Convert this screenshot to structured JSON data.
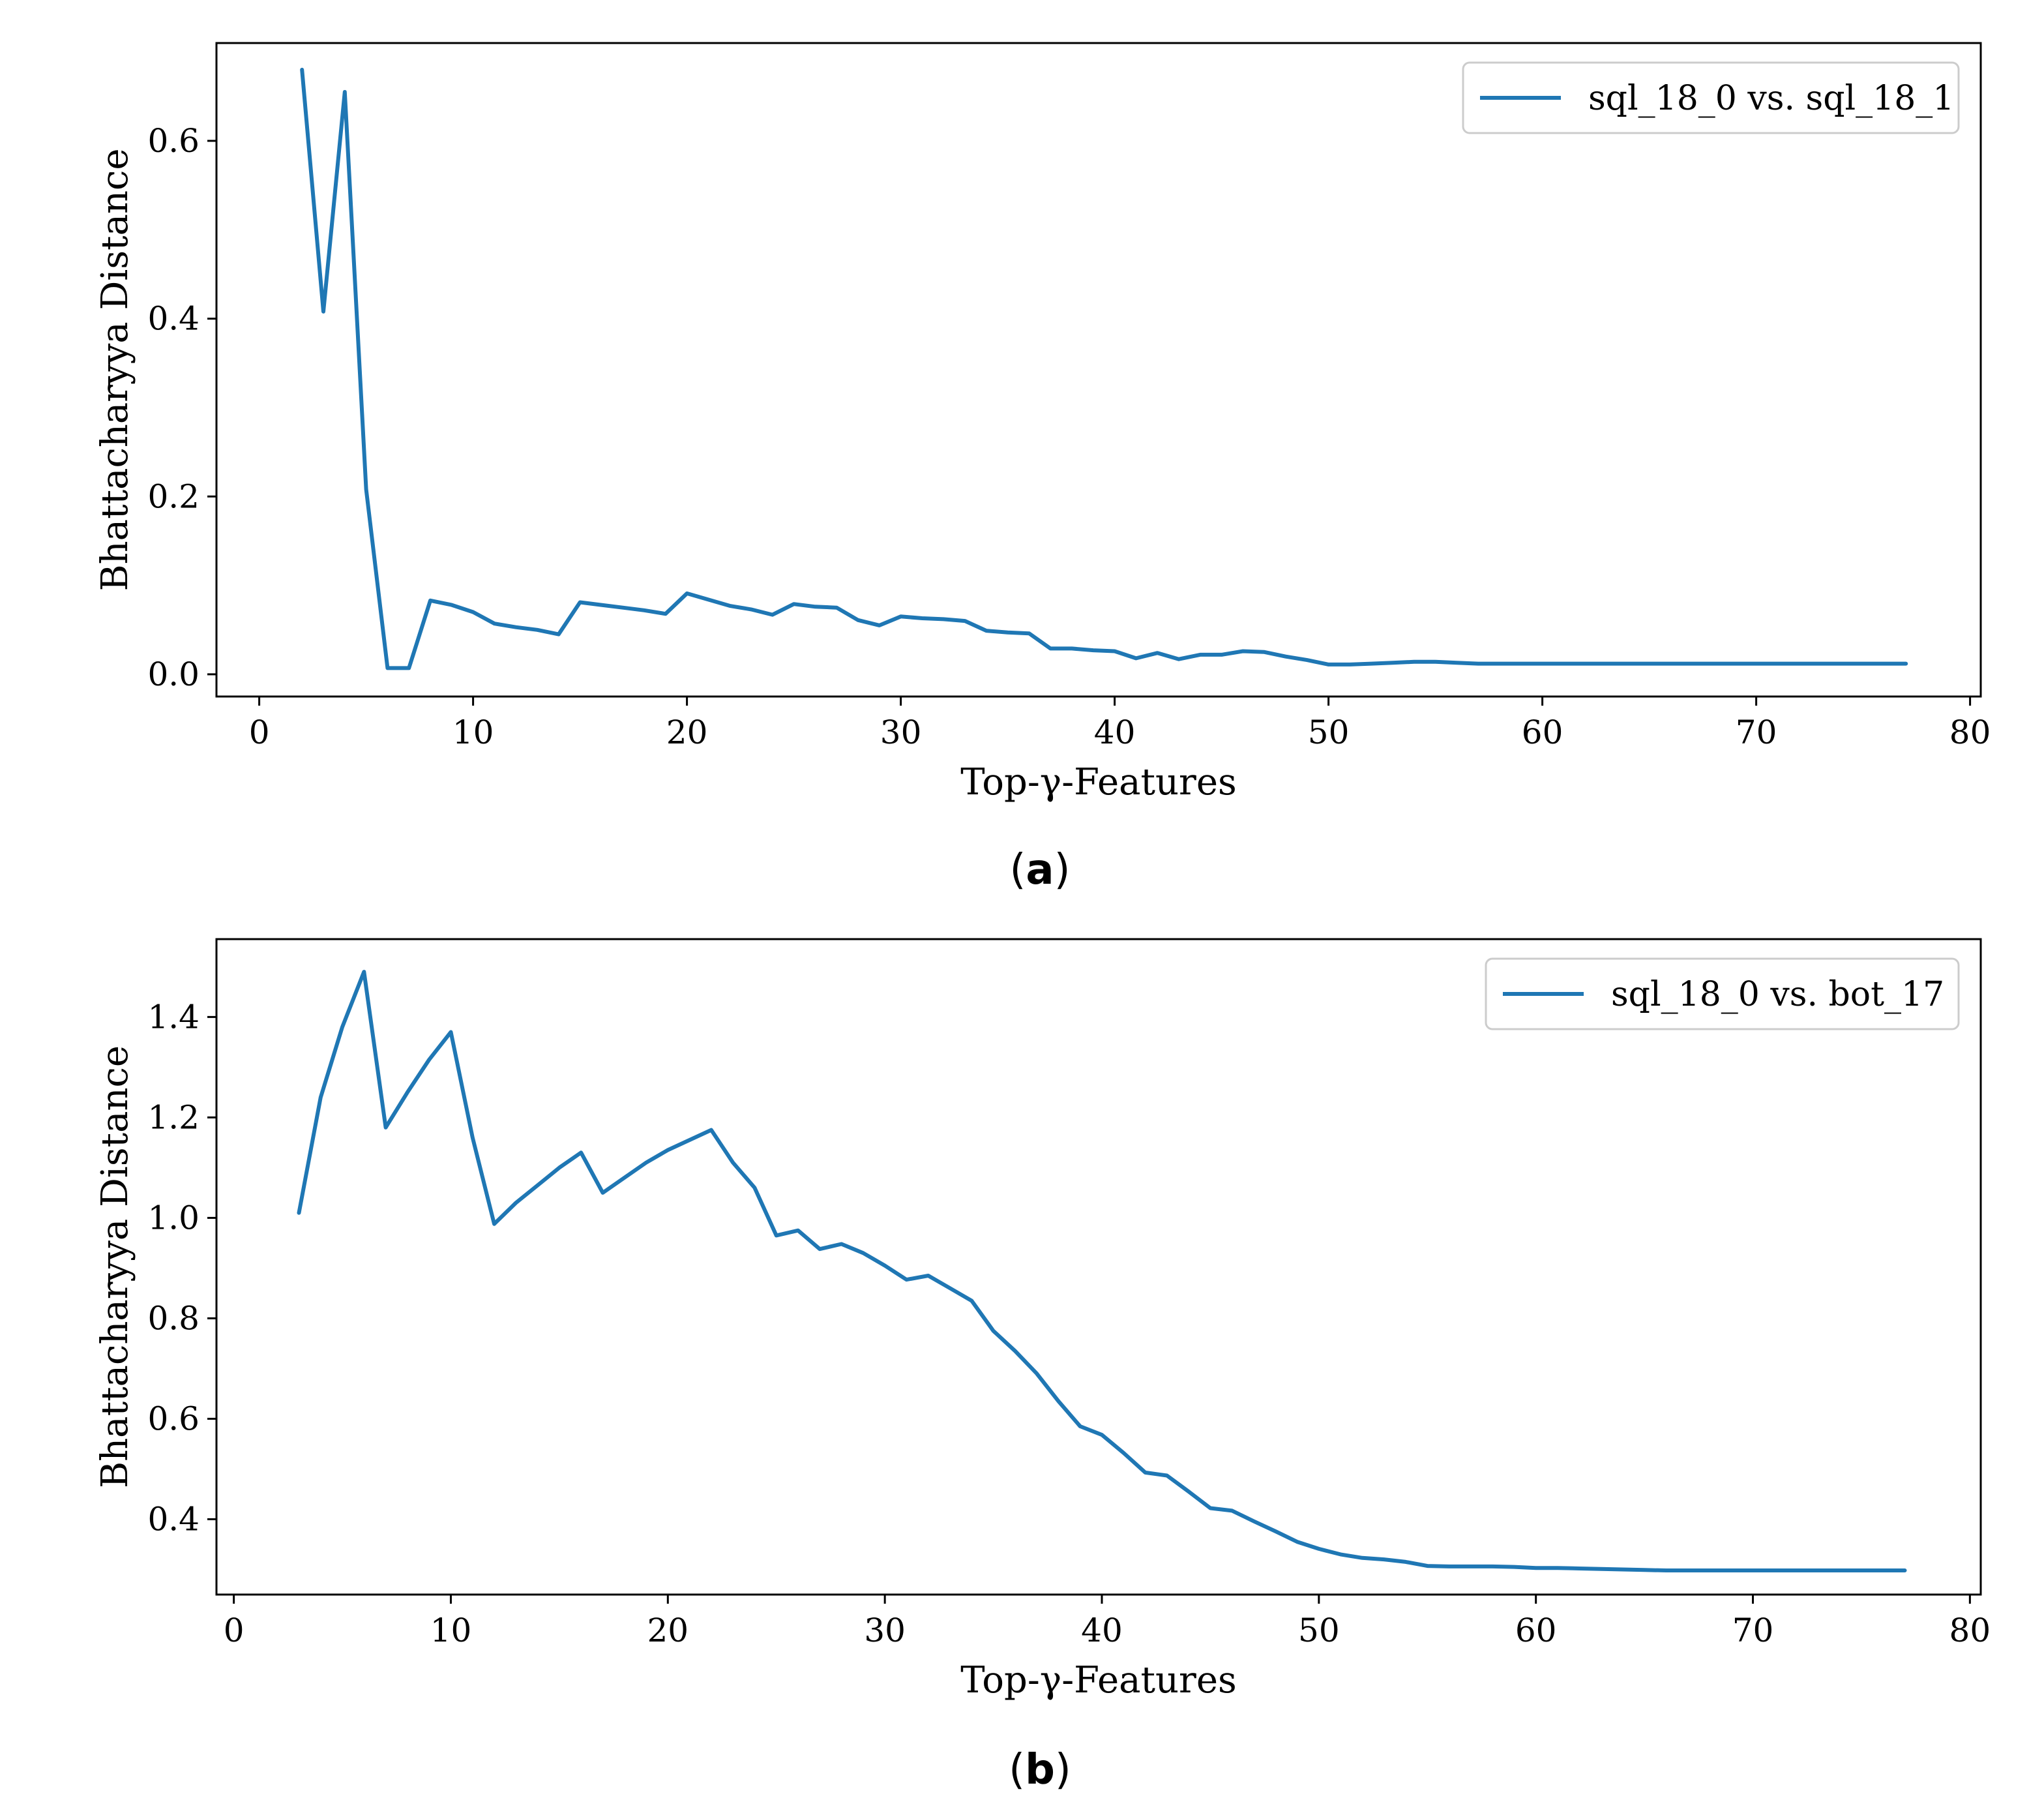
{
  "chart_data": [
    {
      "type": "line",
      "caption_letter": "a",
      "xlabel": "Top-γ-Features",
      "ylabel": "Bhattacharyya Distance",
      "xlim": [
        -2,
        80.5
      ],
      "ylim": [
        -0.025,
        0.71
      ],
      "xticks": [
        0,
        10,
        20,
        30,
        40,
        50,
        60,
        70,
        80
      ],
      "yticks": [
        0.0,
        0.2,
        0.4,
        0.6
      ],
      "ytick_labels": [
        "0.0",
        "0.2",
        "0.4",
        "0.6"
      ],
      "legend_position": "top-right",
      "series": [
        {
          "name": "sql_18_0 vs. sql_18_1",
          "color": "#1f77b4",
          "x": [
            2,
            3,
            4,
            5,
            6,
            7,
            8,
            9,
            10,
            11,
            12,
            13,
            14,
            15,
            16,
            17,
            18,
            19,
            20,
            21,
            22,
            23,
            24,
            25,
            26,
            27,
            28,
            29,
            30,
            31,
            32,
            33,
            34,
            35,
            36,
            37,
            38,
            39,
            40,
            41,
            42,
            43,
            44,
            45,
            46,
            47,
            48,
            49,
            50,
            51,
            52,
            53,
            54,
            55,
            56,
            57,
            58,
            59,
            60,
            61,
            62,
            63,
            64,
            65,
            66,
            67,
            68,
            69,
            70,
            71,
            72,
            73,
            74,
            75,
            76,
            77
          ],
          "y": [
            0.68,
            0.408,
            0.655,
            0.208,
            0.007,
            0.007,
            0.083,
            0.078,
            0.07,
            0.057,
            0.053,
            0.05,
            0.045,
            0.081,
            0.078,
            0.075,
            0.072,
            0.068,
            0.091,
            0.084,
            0.077,
            0.073,
            0.067,
            0.079,
            0.076,
            0.075,
            0.061,
            0.055,
            0.065,
            0.063,
            0.062,
            0.06,
            0.049,
            0.047,
            0.046,
            0.029,
            0.029,
            0.027,
            0.026,
            0.018,
            0.024,
            0.017,
            0.022,
            0.022,
            0.026,
            0.025,
            0.02,
            0.016,
            0.011,
            0.011,
            0.012,
            0.013,
            0.014,
            0.014,
            0.013,
            0.012,
            0.012,
            0.012,
            0.012,
            0.012,
            0.012,
            0.012,
            0.012,
            0.012,
            0.012,
            0.012,
            0.012,
            0.012,
            0.012,
            0.012,
            0.012,
            0.012,
            0.012,
            0.012,
            0.012,
            0.012
          ]
        }
      ]
    },
    {
      "type": "line",
      "caption_letter": "b",
      "xlabel": "Top-γ-Features",
      "ylabel": "Bhattacharyya Distance",
      "xlim": [
        -0.8,
        80.5
      ],
      "ylim": [
        0.25,
        1.555
      ],
      "xticks": [
        0,
        10,
        20,
        30,
        40,
        50,
        60,
        70,
        80
      ],
      "yticks": [
        0.4,
        0.6,
        0.8,
        1.0,
        1.2,
        1.4
      ],
      "ytick_labels": [
        "0.4",
        "0.6",
        "0.8",
        "1.0",
        "1.2",
        "1.4"
      ],
      "legend_position": "top-right",
      "series": [
        {
          "name": "sql_18_0 vs. bot_17",
          "color": "#1f77b4",
          "x": [
            3,
            4,
            5,
            6,
            7,
            8,
            9,
            10,
            11,
            12,
            13,
            14,
            15,
            16,
            17,
            18,
            19,
            20,
            21,
            22,
            23,
            24,
            25,
            26,
            27,
            28,
            29,
            30,
            31,
            32,
            33,
            34,
            35,
            36,
            37,
            38,
            39,
            40,
            41,
            42,
            43,
            44,
            45,
            46,
            47,
            48,
            49,
            50,
            51,
            52,
            53,
            54,
            55,
            56,
            57,
            58,
            59,
            60,
            61,
            62,
            63,
            64,
            65,
            66,
            67,
            68,
            69,
            70,
            71,
            72,
            73,
            74,
            75,
            76,
            77
          ],
          "y": [
            1.01,
            1.24,
            1.38,
            1.49,
            1.18,
            1.25,
            1.315,
            1.37,
            1.16,
            0.988,
            1.03,
            1.065,
            1.1,
            1.13,
            1.05,
            1.08,
            1.11,
            1.135,
            1.155,
            1.175,
            1.11,
            1.06,
            0.965,
            0.975,
            0.938,
            0.948,
            0.93,
            0.905,
            0.877,
            0.885,
            0.86,
            0.835,
            0.775,
            0.735,
            0.69,
            0.635,
            0.585,
            0.568,
            0.532,
            0.493,
            0.487,
            0.455,
            0.422,
            0.417,
            0.396,
            0.376,
            0.355,
            0.341,
            0.33,
            0.323,
            0.32,
            0.315,
            0.307,
            0.306,
            0.306,
            0.306,
            0.305,
            0.303,
            0.303,
            0.302,
            0.301,
            0.3,
            0.299,
            0.298,
            0.298,
            0.298,
            0.298,
            0.298,
            0.298,
            0.298,
            0.298,
            0.298,
            0.298,
            0.298,
            0.298
          ]
        }
      ]
    }
  ]
}
